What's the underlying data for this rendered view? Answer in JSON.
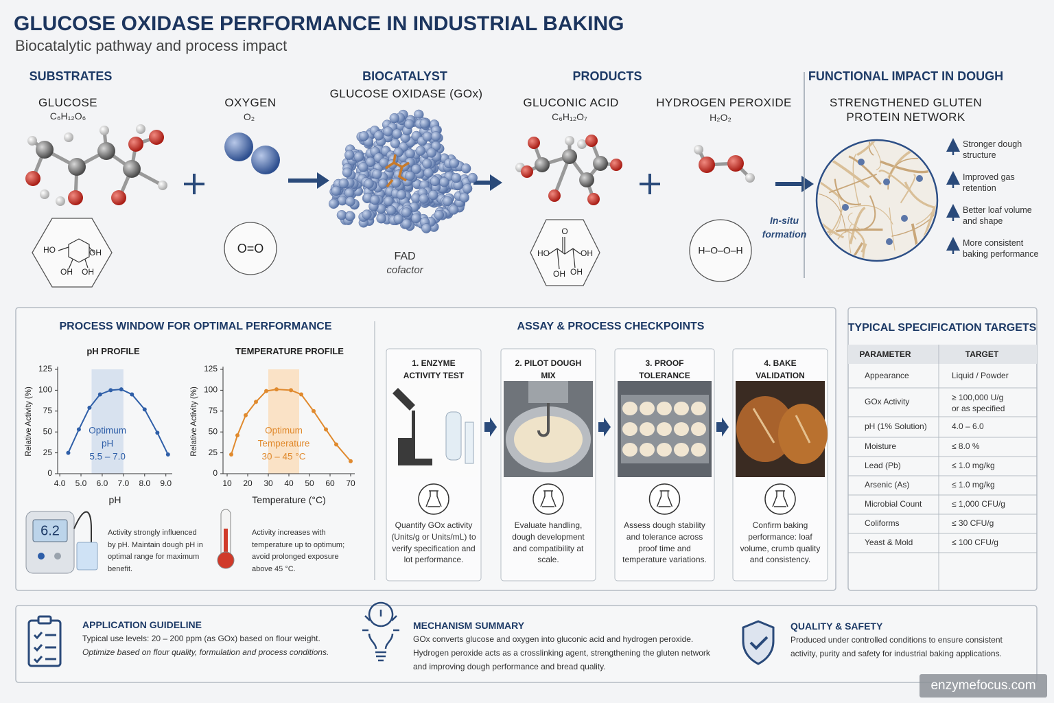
{
  "header": {
    "title": "GLUCOSE OXIDASE PERFORMANCE IN INDUSTRIAL BAKING",
    "subtitle": "Biocatalytic pathway and process impact"
  },
  "pathway": {
    "substrates": {
      "heading": "SUBSTRATES",
      "glucose": {
        "name": "GLUCOSE",
        "formula": "C₆H₁₂O₆",
        "structure": [
          "HO",
          "OH",
          "OH",
          "OH"
        ]
      },
      "oxygen": {
        "name": "OXYGEN",
        "formula": "O₂",
        "structure": "O=O"
      }
    },
    "biocatalyst": {
      "heading": "BIOCATALYST",
      "name": "GLUCOSE OXIDASE (GOx)",
      "cofactor": "FAD",
      "cofactor_note": "cofactor"
    },
    "products": {
      "heading": "PRODUCTS",
      "gluconic_acid": {
        "name": "GLUCONIC ACID",
        "formula": "C₆H₁₂O₇",
        "structure": [
          "O",
          "HO",
          "OH",
          "OH",
          "OH"
        ]
      },
      "hydrogen_peroxide": {
        "name": "HYDROGEN PEROXIDE",
        "formula": "H₂O₂",
        "structure": "H–O–O–H"
      }
    },
    "formation_note": [
      "In-situ",
      "formation"
    ],
    "impact": {
      "heading": "FUNCTIONAL IMPACT IN DOUGH",
      "title": [
        "STRENGTHENED GLUTEN",
        "PROTEIN NETWORK"
      ],
      "benefits": [
        "Stronger dough structure",
        "Improved gas retention",
        "Better loaf volume and shape",
        "More consistent baking performance"
      ]
    }
  },
  "process_window": {
    "title": "PROCESS WINDOW FOR OPTIMAL PERFORMANCE",
    "ph_chart": {
      "type": "line",
      "title": "pH PROFILE",
      "x_label": "pH",
      "y_label": "Relative Activity (%)",
      "x": [
        4.4,
        4.9,
        5.4,
        5.9,
        6.4,
        6.9,
        7.4,
        8.0,
        8.6,
        9.1
      ],
      "values": [
        25,
        53,
        79,
        95,
        100,
        101,
        95,
        77,
        49,
        23
      ],
      "color": "#2f5fa8",
      "xlim": [
        3.9,
        9.3
      ],
      "ylim": [
        0,
        125
      ],
      "xticks": [
        {
          "value": 4,
          "label": "4.0"
        },
        {
          "value": 5,
          "label": "5.0"
        },
        {
          "value": 6,
          "label": "6.0"
        },
        {
          "value": 7,
          "label": "7.0"
        },
        {
          "value": 8,
          "label": "8.0"
        },
        {
          "value": 9,
          "label": "9.0"
        }
      ],
      "yticks": [
        0,
        25,
        50,
        75,
        100,
        125
      ],
      "optimum_range": [
        5.5,
        7.0
      ],
      "optimum_color": "#d8e2ef",
      "optimum_label": [
        "Optimum",
        "pH",
        "5.5 – 7.0"
      ],
      "note": "Activity strongly influenced by pH. Maintain dough pH in optimal range for maximum benefit.",
      "meter_display": "6.2"
    },
    "temperature_chart": {
      "type": "line",
      "title": "TEMPERATURE PROFILE",
      "x_label": "Temperature (°C)",
      "y_label": "Relative Activity (%)",
      "x": [
        12,
        15,
        19,
        24,
        29,
        34,
        41,
        46,
        52,
        58,
        63,
        70
      ],
      "values": [
        23,
        46,
        70,
        86,
        99,
        101,
        100,
        95,
        75,
        53,
        35,
        15
      ],
      "color": "#e08a2e",
      "xlim": [
        8,
        72
      ],
      "ylim": [
        0,
        125
      ],
      "xticks": [
        10,
        20,
        30,
        40,
        50,
        60,
        70
      ],
      "yticks": [
        0,
        25,
        50,
        75,
        100,
        125
      ],
      "optimum_range": [
        30,
        45
      ],
      "optimum_color": "#fae2c6",
      "optimum_label": [
        "Optimum",
        "Temperature",
        "30 – 45 °C"
      ],
      "note": "Activity increases with temperature up to optimum; avoid prolonged exposure above 45 °C."
    }
  },
  "checkpoints": {
    "title": "ASSAY & PROCESS CHECKPOINTS",
    "steps": [
      {
        "title": "1.  ENZYME ACTIVITY TEST",
        "description": "Quantify GOx activity (Units/g or Units/mL) to verify specification and lot performance."
      },
      {
        "title": "2.  PILOT DOUGH MIX",
        "description": "Evaluate handling, dough development and compatibility at scale."
      },
      {
        "title": "3.  PROOF TOLERANCE",
        "description": "Assess dough stability and tolerance across proof time and temperature variations."
      },
      {
        "title": "4.  BAKE VALIDATION",
        "description": "Confirm baking performance: loaf volume, crumb quality and consistency."
      }
    ]
  },
  "specifications": {
    "title": "TYPICAL SPECIFICATION TARGETS",
    "columns": [
      "PARAMETER",
      "TARGET"
    ],
    "rows": [
      [
        "Appearance",
        "Liquid / Powder"
      ],
      [
        "GOx Activity",
        [
          "≥ 100,000 U/g",
          "or as specified"
        ]
      ],
      [
        "pH (1% Solution)",
        "4.0 – 6.0"
      ],
      [
        "Moisture",
        "≤ 8.0 %"
      ],
      [
        "Lead (Pb)",
        "≤ 1.0 mg/kg"
      ],
      [
        "Arsenic (As)",
        "≤ 1.0 mg/kg"
      ],
      [
        "Microbial Count",
        "≤ 1,000 CFU/g"
      ],
      [
        "Coliforms",
        "≤ 30 CFU/g"
      ],
      [
        "Yeast & Mold",
        "≤ 100 CFU/g"
      ]
    ]
  },
  "footer": {
    "application": {
      "title": "APPLICATION GUIDELINE",
      "lines": [
        "Typical use levels: 20 – 200 ppm (as GOx) based on flour weight.",
        "Optimize based on flour quality, formulation and process conditions."
      ]
    },
    "mechanism": {
      "title": "MECHANISM SUMMARY",
      "lines": [
        "GOx converts glucose and oxygen into gluconic acid and hydrogen peroxide.",
        "Hydrogen peroxide acts as a crosslinking agent, strengthening the gluten network",
        "and improving dough performance and bread quality."
      ]
    },
    "quality": {
      "title": "QUALITY & SAFETY",
      "lines": [
        "Produced under controlled conditions to ensure consistent",
        "activity, purity and safety for industrial baking applications."
      ]
    }
  },
  "watermark": "enzymefocus.com"
}
